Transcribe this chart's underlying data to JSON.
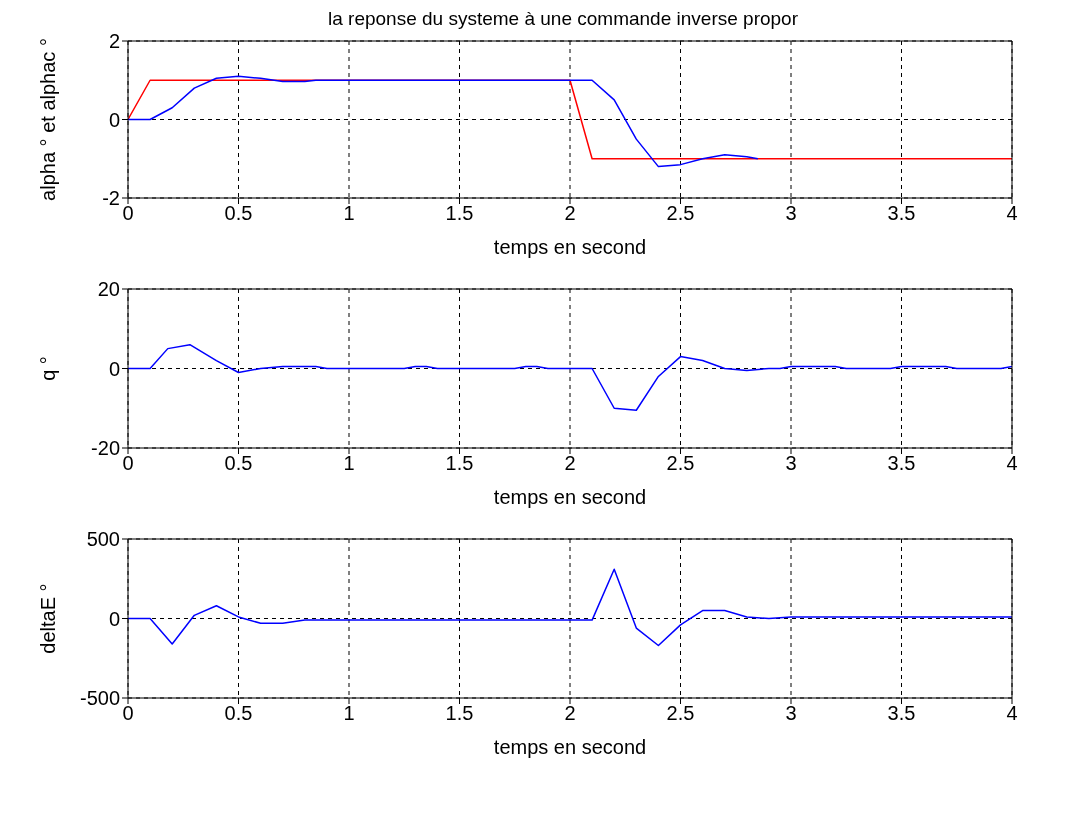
{
  "chart_data": [
    {
      "type": "line",
      "title": "la reponse du systeme à une commande inverse propor",
      "xlabel": "temps en second",
      "ylabel": "alpha ° et alphac °",
      "xlim": [
        0,
        4
      ],
      "xticks": [
        0,
        0.5,
        1,
        1.5,
        2,
        2.5,
        3,
        3.5,
        4
      ],
      "ylim": [
        -2,
        2
      ],
      "yticks": [
        -2,
        0,
        2
      ],
      "grid": true,
      "series": [
        {
          "color": "#ff0000",
          "x": [
            0,
            0.1,
            2,
            2.1,
            4
          ],
          "values": [
            0,
            1,
            1,
            -1,
            -1
          ]
        },
        {
          "color": "#0000ff",
          "x": [
            0,
            0.1,
            0.2,
            0.3,
            0.4,
            0.5,
            0.6,
            0.7,
            0.8,
            0.85,
            2.0,
            2.1,
            2.2,
            2.3,
            2.4,
            2.5,
            2.6,
            2.7,
            2.8,
            2.85
          ],
          "values": [
            0,
            0,
            0.3,
            0.8,
            1.05,
            1.1,
            1.05,
            0.97,
            0.97,
            1,
            1,
            1,
            0.5,
            -0.5,
            -1.2,
            -1.15,
            -1,
            -0.9,
            -0.95,
            -1
          ]
        }
      ]
    },
    {
      "type": "line",
      "xlabel": "temps en second",
      "ylabel": "q °",
      "xlim": [
        0,
        4
      ],
      "xticks": [
        0,
        0.5,
        1,
        1.5,
        2,
        2.5,
        3,
        3.5,
        4
      ],
      "ylim": [
        -20,
        20
      ],
      "yticks": [
        -20,
        0,
        20
      ],
      "grid": true,
      "series": [
        {
          "color": "#0000ff",
          "x": [
            0,
            0.1,
            0.18,
            0.28,
            0.4,
            0.5,
            0.6,
            0.7,
            0.85,
            0.9,
            1.25,
            1.3,
            1.35,
            1.4,
            1.75,
            1.8,
            1.85,
            1.9,
            2.1,
            2.2,
            2.3,
            2.4,
            2.5,
            2.6,
            2.7,
            2.8,
            2.9,
            2.95,
            3.0,
            3.2,
            3.25,
            3.45,
            3.5,
            3.7,
            3.75,
            3.95,
            4.0
          ],
          "values": [
            0,
            0,
            5,
            6,
            2,
            -1,
            0,
            0.5,
            0.5,
            0,
            0,
            0.5,
            0.5,
            0,
            0,
            0.5,
            0.5,
            0,
            0,
            -10,
            -10.5,
            -2,
            3,
            2,
            0,
            -0.5,
            0,
            0,
            0.5,
            0.5,
            0,
            0,
            0.5,
            0.5,
            0,
            0,
            0.5
          ]
        }
      ]
    },
    {
      "type": "line",
      "xlabel": "temps en second",
      "ylabel": "deltaE °",
      "xlim": [
        0,
        4
      ],
      "xticks": [
        0,
        0.5,
        1,
        1.5,
        2,
        2.5,
        3,
        3.5,
        4
      ],
      "ylim": [
        -500,
        500
      ],
      "yticks": [
        -500,
        0,
        500
      ],
      "grid": true,
      "series": [
        {
          "color": "#0000ff",
          "x": [
            0,
            0.1,
            0.2,
            0.3,
            0.4,
            0.5,
            0.6,
            0.7,
            0.8,
            2.1,
            2.2,
            2.3,
            2.4,
            2.5,
            2.6,
            2.7,
            2.8,
            2.9,
            3.0,
            4.0
          ],
          "values": [
            0,
            0,
            -160,
            20,
            80,
            10,
            -30,
            -30,
            -10,
            -10,
            310,
            -60,
            -170,
            -40,
            50,
            50,
            10,
            0,
            10,
            10
          ]
        }
      ]
    }
  ]
}
